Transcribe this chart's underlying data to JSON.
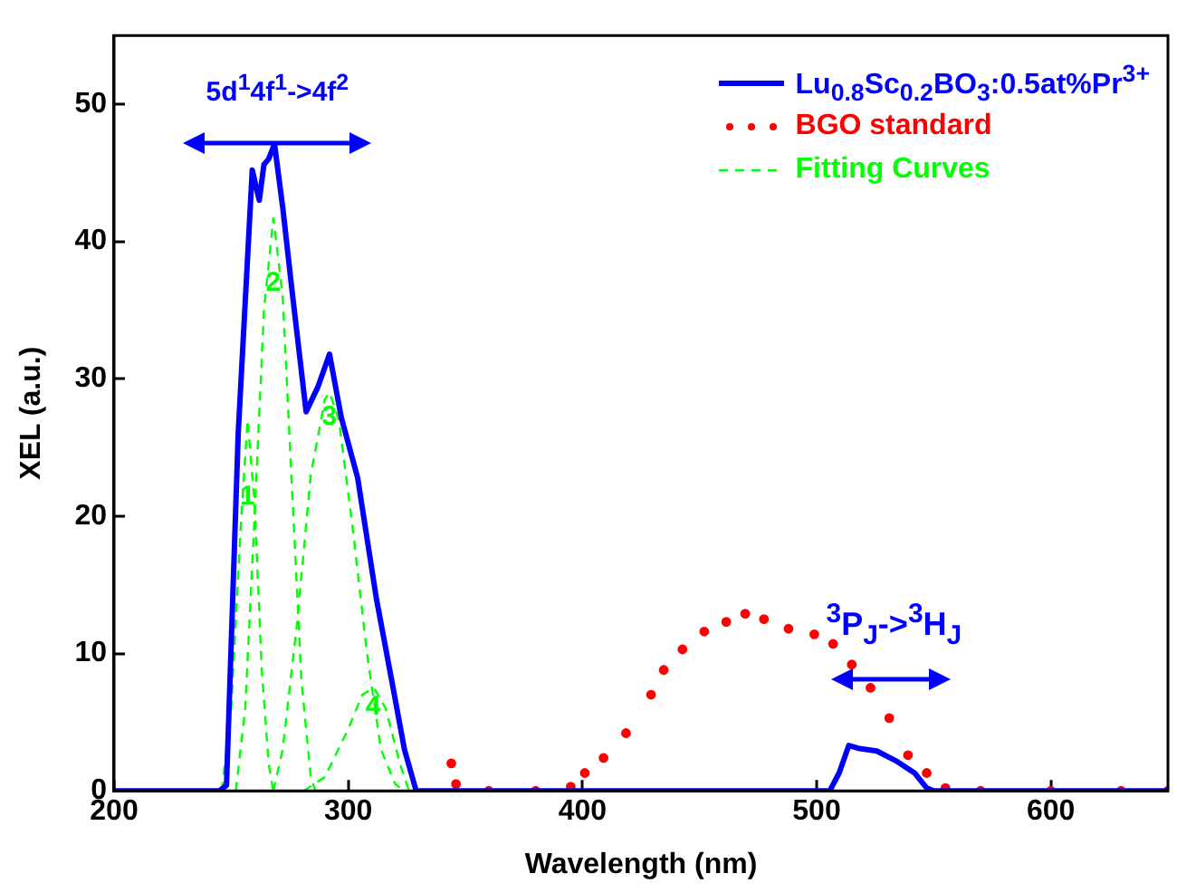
{
  "chart_data": {
    "type": "line",
    "xlabel": "Wavelength (nm)",
    "ylabel": "XEL (a.u.)",
    "xlim": [
      200,
      650
    ],
    "xticks": [
      200,
      300,
      400,
      500,
      600
    ],
    "ylim": [
      0,
      55
    ],
    "yticks": [
      0,
      10,
      20,
      30,
      40,
      50
    ],
    "grid": false,
    "legend": "top right",
    "series": [
      {
        "name": "Lu$_{0.8}$Sc$_{0.2}$BO$_{3}$:0.5at%Pr$^{3+}$",
        "type": "line",
        "color": "#0000ff",
        "line_style": "solid",
        "x": [
          200,
          245,
          248,
          253,
          259,
          262,
          264,
          266,
          268.5,
          272,
          276,
          282,
          287,
          292,
          297,
          304,
          312,
          318.7,
          324,
          329,
          505.6,
          509.6,
          513.7,
          517.7,
          525.7,
          533.7,
          541.8,
          547,
          550,
          650
        ],
        "values": [
          0,
          0,
          0.4,
          26,
          45.2,
          43,
          45.6,
          46,
          47.1,
          42.5,
          36.4,
          27.6,
          29.4,
          31.8,
          27.2,
          22.8,
          14,
          7.9,
          3,
          0,
          0,
          1.3,
          3.3,
          3.1,
          2.9,
          2.2,
          1.3,
          0.2,
          0,
          0
        ]
      },
      {
        "name": "BGO standard",
        "type": "scatter",
        "color": "#ff0000",
        "marker": "circle",
        "x": [
          344,
          346,
          360,
          380,
          395,
          401,
          409,
          418.6,
          429.3,
          434.7,
          442.7,
          452,
          461.4,
          469.5,
          477.5,
          488,
          499,
          507,
          515,
          523,
          531,
          539,
          547,
          555,
          570,
          600,
          630,
          650
        ],
        "values": [
          2,
          0.5,
          0,
          0,
          0.3,
          1.3,
          2.4,
          4.2,
          7,
          8.8,
          10.3,
          11.6,
          12.3,
          12.9,
          12.5,
          11.8,
          11.4,
          10.7,
          9.2,
          7.5,
          5.3,
          2.6,
          1.3,
          0.2,
          0,
          0,
          0,
          0
        ]
      },
      {
        "name": "Fitting Curves",
        "type": "line",
        "color": "#00ff00",
        "line_style": "dashed",
        "x": [
          246,
          250,
          254,
          257,
          260,
          263,
          266,
          268
        ],
        "values": [
          0,
          6,
          19,
          27,
          21,
          9,
          2,
          0
        ]
      },
      {
        "type": "line",
        "color": "#00ff00",
        "line_style": "dashed",
        "x": [
          252,
          256,
          260,
          264,
          268,
          272,
          276,
          280,
          284,
          286
        ],
        "values": [
          0,
          6,
          20,
          35,
          41.7,
          36,
          22,
          8,
          1,
          0
        ]
      },
      {
        "type": "line",
        "color": "#00ff00",
        "line_style": "dashed",
        "x": [
          268,
          272,
          278,
          284,
          290,
          292,
          296,
          302,
          308,
          314,
          320,
          324
        ],
        "values": [
          0,
          3,
          12,
          23,
          28.5,
          29,
          27,
          19,
          10,
          3,
          0.5,
          0
        ]
      },
      {
        "type": "line",
        "color": "#00ff00",
        "line_style": "dashed",
        "x": [
          281,
          290,
          300,
          306,
          311,
          316,
          322,
          326
        ],
        "values": [
          0,
          1,
          4.5,
          7,
          7.5,
          6,
          2,
          0
        ]
      }
    ],
    "annotations": [
      "5d$^{1}$4f$^{1}$->4f$^{2}$",
      "$^{3}$P$_{J}$->$^{3}$H$_{J}$",
      {
        "text": "1",
        "x": 257,
        "y": 21.5
      },
      {
        "text": "2",
        "x": 268,
        "y": 37
      },
      {
        "text": "3",
        "x": 292,
        "y": 27.2
      },
      {
        "text": "4",
        "x": 310.6,
        "y": 6.1
      }
    ]
  }
}
